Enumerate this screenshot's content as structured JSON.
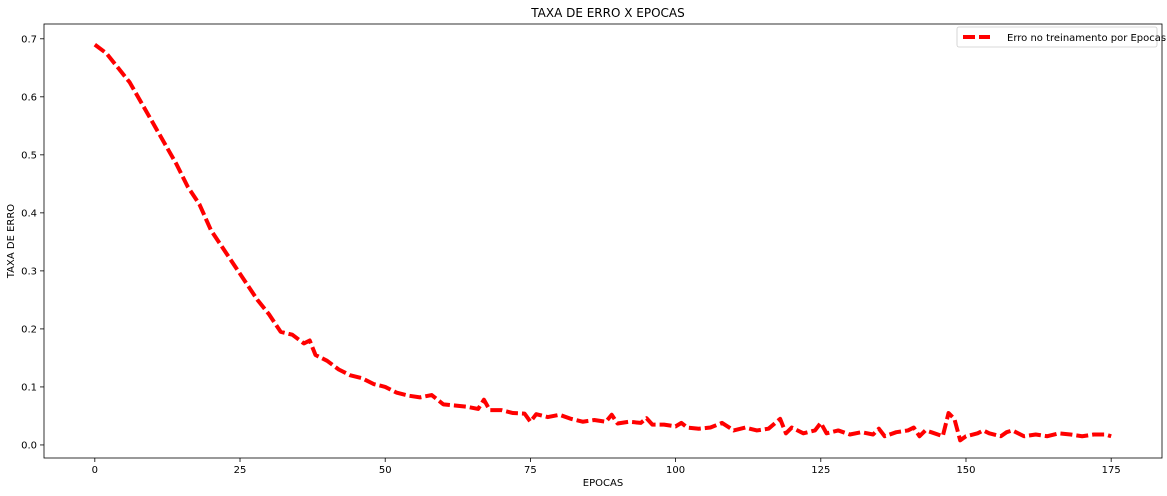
{
  "chart_data": {
    "type": "line",
    "title": "TAXA DE ERRO X EPOCAS",
    "xlabel": "EPOCAS",
    "ylabel": "TAXA DE ERRO",
    "xlim": [
      -8.75,
      183.75
    ],
    "ylim": [
      -0.0225,
      0.7255
    ],
    "xticks": [
      0,
      25,
      50,
      75,
      100,
      125,
      150,
      175
    ],
    "yticks": [
      0.0,
      0.1,
      0.2,
      0.3,
      0.4,
      0.5,
      0.6,
      0.7
    ],
    "xtick_labels": [
      "0",
      "25",
      "50",
      "75",
      "100",
      "125",
      "150",
      "175"
    ],
    "ytick_labels": [
      "0.0",
      "0.1",
      "0.2",
      "0.3",
      "0.4",
      "0.5",
      "0.6",
      "0.7"
    ],
    "grid": false,
    "legend_position": "top-right",
    "series": [
      {
        "name": "Erro no treinamento por Epocas",
        "color": "#ff0000",
        "style": "dashed",
        "x": [
          0,
          2,
          4,
          6,
          8,
          10,
          12,
          14,
          16,
          18,
          20,
          22,
          24,
          26,
          28,
          30,
          32,
          34,
          36,
          37,
          38,
          40,
          42,
          44,
          46,
          48,
          50,
          52,
          54,
          56,
          58,
          60,
          62,
          64,
          66,
          67,
          68,
          70,
          72,
          74,
          75,
          76,
          78,
          80,
          82,
          84,
          86,
          88,
          89,
          90,
          92,
          94,
          95,
          96,
          98,
          100,
          101,
          102,
          104,
          106,
          108,
          110,
          112,
          114,
          116,
          118,
          119,
          120,
          122,
          124,
          125,
          126,
          128,
          130,
          132,
          134,
          135,
          136,
          138,
          140,
          141,
          142,
          143,
          144,
          146,
          147,
          148,
          149,
          150,
          152,
          153,
          154,
          156,
          157,
          158,
          160,
          162,
          164,
          166,
          168,
          170,
          172,
          174,
          175
        ],
        "y": [
          0.69,
          0.675,
          0.65,
          0.625,
          0.59,
          0.555,
          0.52,
          0.485,
          0.445,
          0.415,
          0.37,
          0.34,
          0.31,
          0.28,
          0.25,
          0.225,
          0.195,
          0.19,
          0.175,
          0.18,
          0.155,
          0.145,
          0.13,
          0.12,
          0.115,
          0.105,
          0.1,
          0.09,
          0.085,
          0.082,
          0.086,
          0.07,
          0.068,
          0.066,
          0.062,
          0.078,
          0.06,
          0.06,
          0.055,
          0.054,
          0.04,
          0.053,
          0.048,
          0.052,
          0.045,
          0.04,
          0.043,
          0.04,
          0.052,
          0.037,
          0.04,
          0.038,
          0.046,
          0.035,
          0.035,
          0.032,
          0.038,
          0.03,
          0.028,
          0.03,
          0.038,
          0.025,
          0.03,
          0.025,
          0.028,
          0.045,
          0.02,
          0.03,
          0.02,
          0.025,
          0.038,
          0.02,
          0.025,
          0.018,
          0.022,
          0.018,
          0.028,
          0.015,
          0.022,
          0.025,
          0.03,
          0.015,
          0.025,
          0.022,
          0.015,
          0.055,
          0.045,
          0.008,
          0.015,
          0.02,
          0.025,
          0.02,
          0.015,
          0.022,
          0.025,
          0.015,
          0.018,
          0.015,
          0.02,
          0.018,
          0.015,
          0.018,
          0.018,
          0.015
        ]
      }
    ]
  }
}
